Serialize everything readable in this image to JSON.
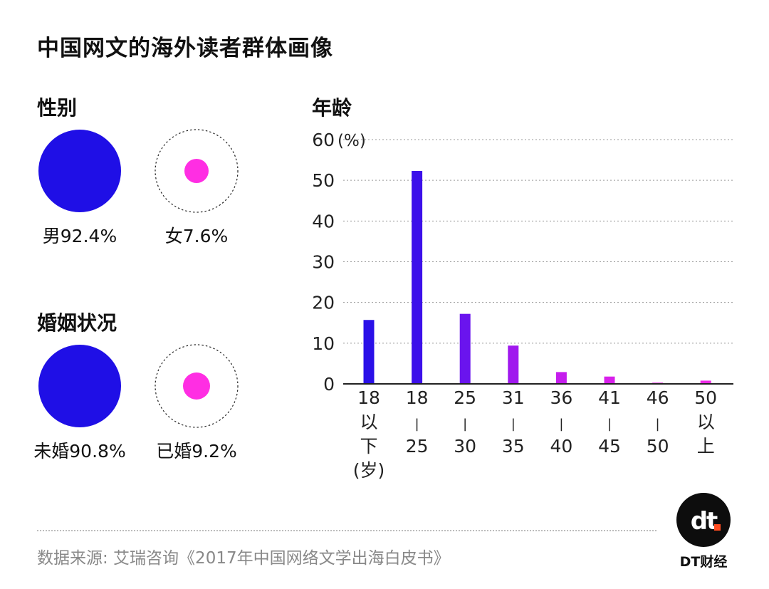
{
  "title": "中国网文的海外读者群体画像",
  "gender": {
    "heading": "性别",
    "male_label": "男92.4%",
    "female_label": "女7.6%"
  },
  "marital": {
    "heading": "婚姻状况",
    "unmarried_label": "未婚90.8%",
    "married_label": "已婚9.2%"
  },
  "age": {
    "heading": "年龄"
  },
  "colors": {
    "blue": "#1f0fe6",
    "magenta": "#ff2ee3"
  },
  "chart_data": {
    "type": "bar",
    "unit_label": "(%)",
    "ylim": [
      0,
      60
    ],
    "yticks": [
      0,
      10,
      20,
      30,
      40,
      50,
      60
    ],
    "grid": true,
    "categories": [
      {
        "lines": [
          "18",
          "以",
          "下",
          "(岁)"
        ]
      },
      {
        "lines": [
          "18",
          "|",
          "25"
        ]
      },
      {
        "lines": [
          "25",
          "|",
          "30"
        ]
      },
      {
        "lines": [
          "31",
          "|",
          "35"
        ]
      },
      {
        "lines": [
          "36",
          "|",
          "40"
        ]
      },
      {
        "lines": [
          "41",
          "|",
          "45"
        ]
      },
      {
        "lines": [
          "46",
          "|",
          "50"
        ]
      },
      {
        "lines": [
          "50",
          "以",
          "上"
        ]
      }
    ],
    "values": [
      15.7,
      52.3,
      17.2,
      9.4,
      2.9,
      1.8,
      0.3,
      0.8
    ],
    "bar_colors": [
      "#2a10e8",
      "#3c10ea",
      "#6a14ee",
      "#a018ee",
      "#c51ded",
      "#d820eb",
      "#e324e8",
      "#ec2ae6"
    ]
  },
  "source": "数据来源: 艾瑞咨询《2017年中国网络文学出海白皮书》",
  "brand": {
    "logo_text": "dt",
    "name": "DT财经"
  }
}
